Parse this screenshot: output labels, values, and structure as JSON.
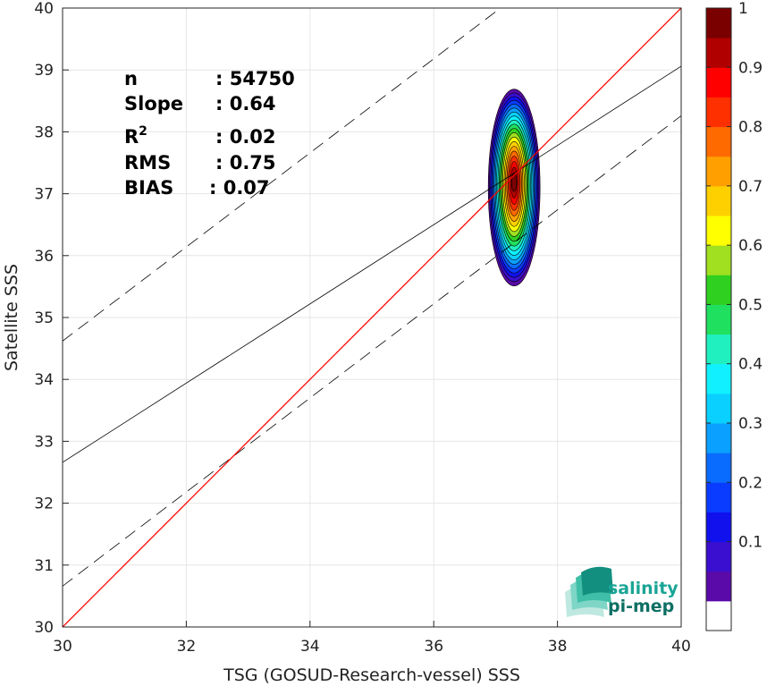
{
  "chart_data": {
    "type": "contour-density-scatter",
    "xlabel": "TSG (GOSUD-Research-vessel) SSS",
    "ylabel": "Satellite SSS",
    "xlim": [
      30,
      40
    ],
    "ylim": [
      30,
      40
    ],
    "xticks": [
      "30",
      "32",
      "34",
      "36",
      "38",
      "40"
    ],
    "yticks": [
      "30",
      "31",
      "32",
      "33",
      "34",
      "35",
      "36",
      "37",
      "38",
      "39",
      "40"
    ],
    "grid": true,
    "stats": [
      {
        "label": "n",
        "value": ": 54750"
      },
      {
        "label": "Slope",
        "value": ": 0.64"
      },
      {
        "label": "R2",
        "value": ": 0.02"
      },
      {
        "label": "RMS",
        "value": ": 0.75"
      },
      {
        "label": "BIAS",
        "value": ": 0.07"
      }
    ],
    "lines": {
      "identity": {
        "slope": 1,
        "intercept": 0,
        "color": "#ff0000"
      },
      "fit": {
        "slope": 0.64,
        "intercept": 13.46,
        "color": "#000000"
      },
      "upper_band": {
        "slope": 0.76,
        "intercept": 11.82,
        "style": "dashed"
      },
      "lower_band": {
        "slope": 0.76,
        "intercept": 7.86,
        "style": "dashed"
      }
    },
    "density_center": {
      "x": 37.3,
      "y": 37.1
    },
    "contour_levels": [
      0.05,
      0.1,
      0.15,
      0.2,
      0.25,
      0.3,
      0.35,
      0.4,
      0.45,
      0.5,
      0.55,
      0.6,
      0.65,
      0.7,
      0.75,
      0.8,
      0.85,
      0.9,
      0.95
    ],
    "colorbar": {
      "ticks": [
        "0.1",
        "0.2",
        "0.3",
        "0.4",
        "0.5",
        "0.6",
        "0.7",
        "0.8",
        "0.9",
        "1"
      ],
      "colors": [
        "#ffffff",
        "#5a0aa8",
        "#3a0fd0",
        "#1111ee",
        "#0a3cff",
        "#0a6cff",
        "#0aa0ff",
        "#0ad0ff",
        "#10f0ff",
        "#20f0c0",
        "#20e060",
        "#30d020",
        "#a0e020",
        "#ffff00",
        "#ffd000",
        "#ffa000",
        "#ff6a00",
        "#ff3000",
        "#ff0000",
        "#b00000",
        "#7a0000"
      ]
    },
    "logo": {
      "line1": "salinity",
      "line2": "pi-mep"
    }
  }
}
